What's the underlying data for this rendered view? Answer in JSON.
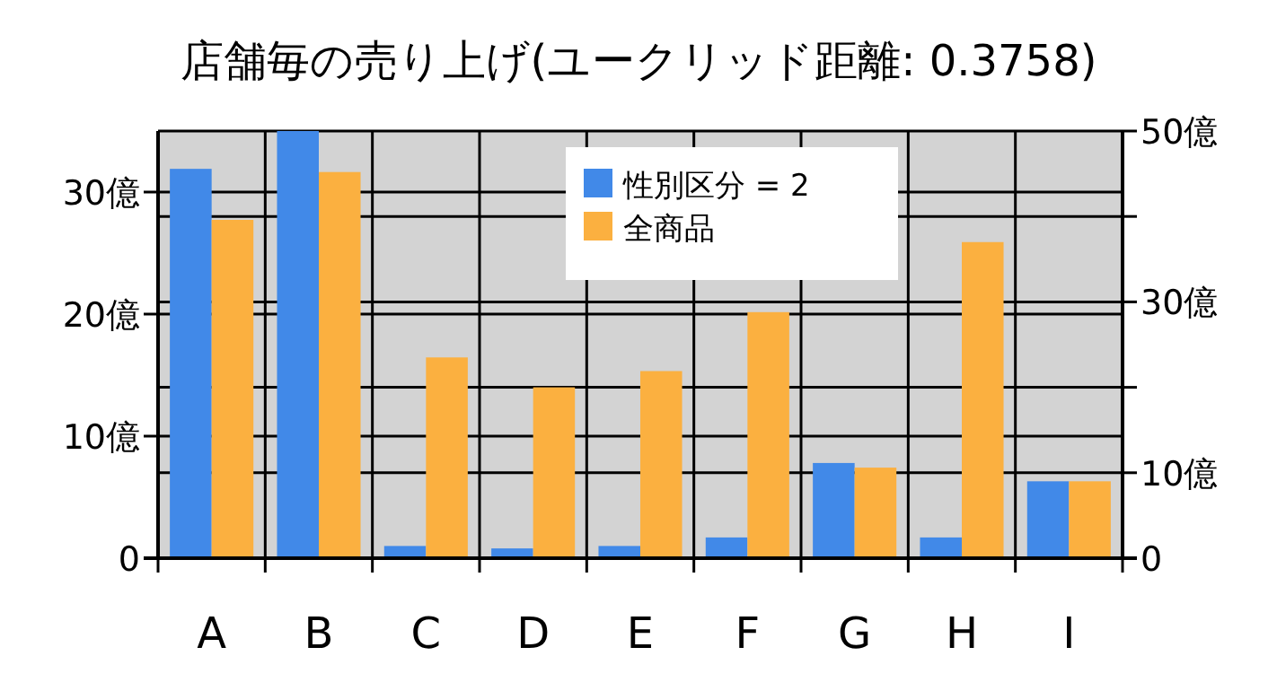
{
  "chart_data": {
    "type": "bar",
    "title": "店舗毎の売り上げ(ユークリッド距離: 0.3758)",
    "categories": [
      "A",
      "B",
      "C",
      "D",
      "E",
      "F",
      "G",
      "H",
      "I"
    ],
    "series": [
      {
        "name": "性別区分 = 2",
        "color": "#4189e8",
        "values": [
          31.9,
          35,
          1.0,
          0.8,
          1.0,
          1.7,
          7.8,
          1.7,
          6.3
        ]
      },
      {
        "name": "全商品",
        "color": "#fbb040",
        "axis": "y2",
        "values": [
          39.6,
          45.2,
          23.5,
          20.0,
          21.9,
          28.8,
          10.6,
          37.0,
          9.0
        ]
      }
    ],
    "ylim": [
      0,
      35
    ],
    "yticks": [
      0,
      {
        "value": 10,
        "label": "10億"
      },
      {
        "value": 20,
        "label": "20億"
      },
      {
        "value": 30,
        "label": "30億"
      }
    ],
    "y2lim": [
      0,
      50
    ],
    "y2ticks": [
      0,
      {
        "value": 10,
        "label": "10億"
      },
      {
        "value": 20,
        "label": null
      },
      {
        "value": 30,
        "label": "30億"
      },
      {
        "value": 40,
        "label": null
      },
      {
        "value": 50,
        "label": "50億"
      }
    ],
    "grid": true,
    "legend": "top right"
  }
}
